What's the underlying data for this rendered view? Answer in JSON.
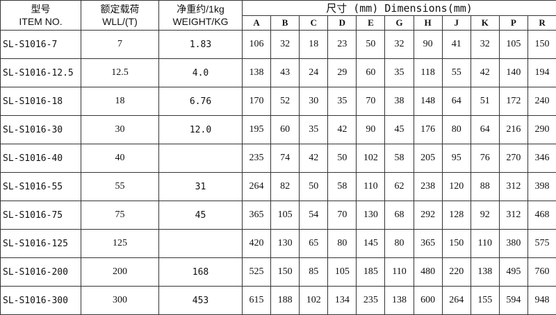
{
  "header": {
    "item_cn": "型号",
    "item_en": "ITEM NO.",
    "wll_cn": "额定载荷",
    "wll_en": "WLL/(T)",
    "weight_cn": "净重约/1kg",
    "weight_en": "WEIGHT/KG",
    "dimensions": "尺寸 (mm) Dimensions(mm)",
    "dim_columns": [
      "A",
      "B",
      "C",
      "D",
      "E",
      "G",
      "H",
      "J",
      "K",
      "P",
      "R"
    ]
  },
  "rows": [
    {
      "item": "SL-S1016-7",
      "wll": "7",
      "weight": "1.83",
      "dims": [
        "106",
        "32",
        "18",
        "23",
        "50",
        "32",
        "90",
        "41",
        "32",
        "105",
        "150"
      ]
    },
    {
      "item": "SL-S1016-12.5",
      "wll": "12.5",
      "weight": "4.0",
      "dims": [
        "138",
        "43",
        "24",
        "29",
        "60",
        "35",
        "118",
        "55",
        "42",
        "140",
        "194"
      ]
    },
    {
      "item": "SL-S1016-18",
      "wll": "18",
      "weight": "6.76",
      "dims": [
        "170",
        "52",
        "30",
        "35",
        "70",
        "38",
        "148",
        "64",
        "51",
        "172",
        "240"
      ]
    },
    {
      "item": "SL-S1016-30",
      "wll": "30",
      "weight": "12.0",
      "dims": [
        "195",
        "60",
        "35",
        "42",
        "90",
        "45",
        "176",
        "80",
        "64",
        "216",
        "290"
      ]
    },
    {
      "item": "SL-S1016-40",
      "wll": "40",
      "weight": "",
      "dims": [
        "235",
        "74",
        "42",
        "50",
        "102",
        "58",
        "205",
        "95",
        "76",
        "270",
        "346"
      ]
    },
    {
      "item": "SL-S1016-55",
      "wll": "55",
      "weight": "31",
      "dims": [
        "264",
        "82",
        "50",
        "58",
        "110",
        "62",
        "238",
        "120",
        "88",
        "312",
        "398"
      ]
    },
    {
      "item": "SL-S1016-75",
      "wll": "75",
      "weight": "45",
      "dims": [
        "365",
        "105",
        "54",
        "70",
        "130",
        "68",
        "292",
        "128",
        "92",
        "312",
        "468"
      ]
    },
    {
      "item": "SL-S1016-125",
      "wll": "125",
      "weight": "",
      "dims": [
        "420",
        "130",
        "65",
        "80",
        "145",
        "80",
        "365",
        "150",
        "110",
        "380",
        "575"
      ]
    },
    {
      "item": "SL-S1016-200",
      "wll": "200",
      "weight": "168",
      "dims": [
        "525",
        "150",
        "85",
        "105",
        "185",
        "110",
        "480",
        "220",
        "138",
        "495",
        "760"
      ]
    },
    {
      "item": "SL-S1016-300",
      "wll": "300",
      "weight": "453",
      "dims": [
        "615",
        "188",
        "102",
        "134",
        "235",
        "138",
        "600",
        "264",
        "155",
        "594",
        "948"
      ]
    }
  ]
}
